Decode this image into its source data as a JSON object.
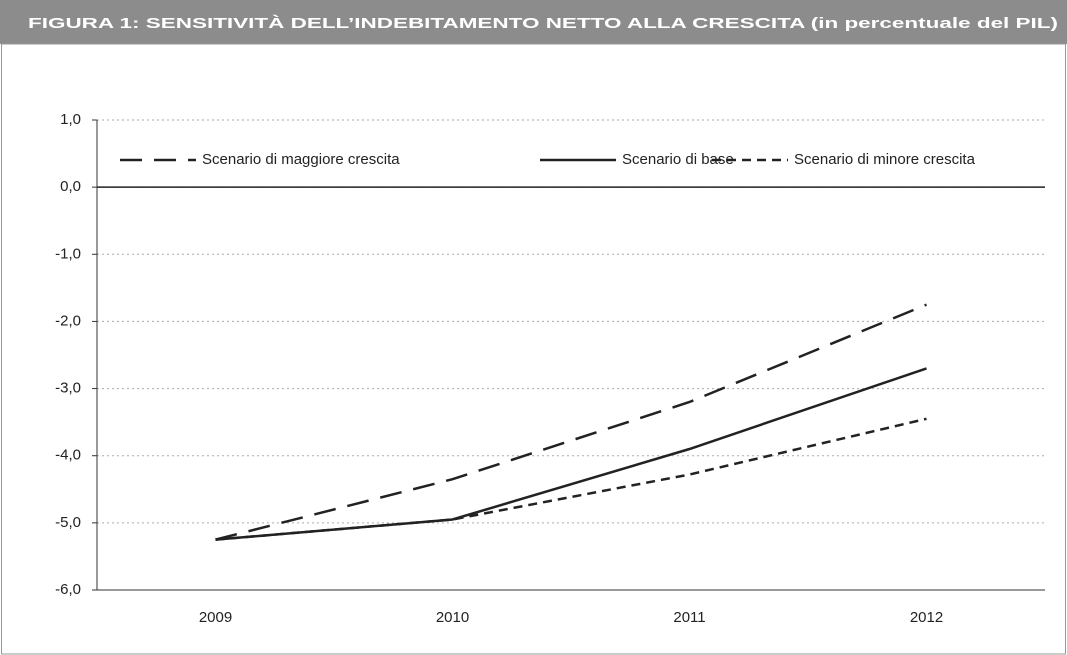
{
  "chart_data": {
    "type": "line",
    "title": "FIGURA 1: SENSITIVITÀ DELL’INDEBITAMENTO NETTO ALLA CRESCITA (in percentuale del PIL)",
    "categories": [
      "2009",
      "2010",
      "2011",
      "2012"
    ],
    "series": [
      {
        "name": "Scenario di maggiore crescita",
        "color": "#222222",
        "dash": "long",
        "values": [
          -5.25,
          -4.35,
          -3.2,
          -1.75
        ]
      },
      {
        "name": "Scenario di base",
        "color": "#222222",
        "dash": "solid",
        "values": [
          -5.25,
          -4.95,
          -3.9,
          -2.7
        ]
      },
      {
        "name": "Scenario di minore crescita",
        "color": "#222222",
        "dash": "short",
        "values": [
          -5.25,
          -4.95,
          -4.28,
          -3.45
        ]
      }
    ],
    "ylim": [
      -6,
      1
    ],
    "yticks": [
      {
        "value": 1,
        "label": "1,0"
      },
      {
        "value": 0,
        "label": "0,0"
      },
      {
        "value": -1,
        "label": "-1,0"
      },
      {
        "value": -2,
        "label": "-2,0"
      },
      {
        "value": -3,
        "label": "-3,0"
      },
      {
        "value": -4,
        "label": "-4,0"
      },
      {
        "value": -5,
        "label": "-5,0"
      },
      {
        "value": -6,
        "label": "-6,0"
      }
    ],
    "grid": true,
    "legend": "top"
  }
}
